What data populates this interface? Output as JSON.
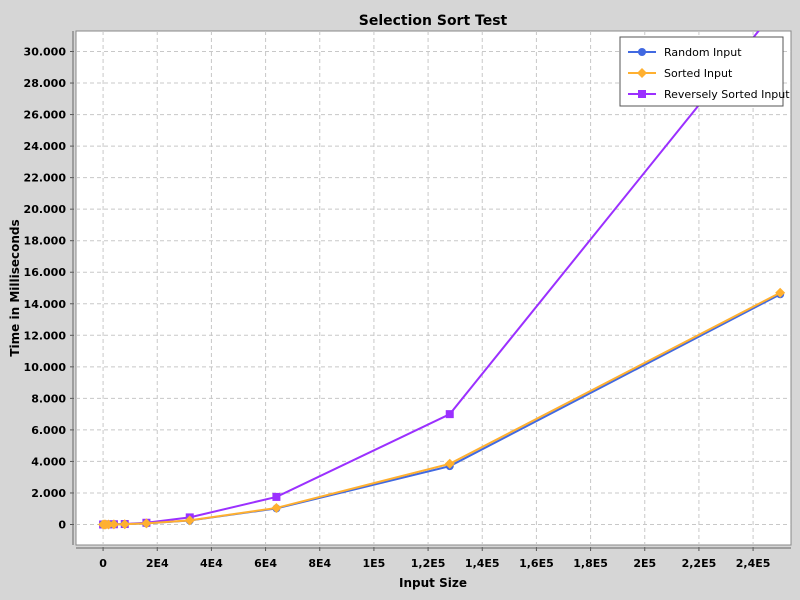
{
  "chart_data": {
    "type": "line",
    "title": "Selection Sort Test",
    "xlabel": "Input Size",
    "ylabel": "Time in Milliseconds",
    "xlim": [
      -10000,
      254000
    ],
    "ylim": [
      -1300,
      31300
    ],
    "x_ticks": [
      {
        "value": 0,
        "label": "0"
      },
      {
        "value": 20000,
        "label": "2E4"
      },
      {
        "value": 40000,
        "label": "4E4"
      },
      {
        "value": 60000,
        "label": "6E4"
      },
      {
        "value": 80000,
        "label": "8E4"
      },
      {
        "value": 100000,
        "label": "1E5"
      },
      {
        "value": 120000,
        "label": "1,2E5"
      },
      {
        "value": 140000,
        "label": "1,4E5"
      },
      {
        "value": 160000,
        "label": "1,6E5"
      },
      {
        "value": 180000,
        "label": "1,8E5"
      },
      {
        "value": 200000,
        "label": "2E5"
      },
      {
        "value": 220000,
        "label": "2,2E5"
      },
      {
        "value": 240000,
        "label": "2,4E5"
      }
    ],
    "y_ticks": [
      {
        "value": 0,
        "label": "0"
      },
      {
        "value": 2000,
        "label": "2.000"
      },
      {
        "value": 4000,
        "label": "4.000"
      },
      {
        "value": 6000,
        "label": "6.000"
      },
      {
        "value": 8000,
        "label": "8.000"
      },
      {
        "value": 10000,
        "label": "10.000"
      },
      {
        "value": 12000,
        "label": "12.000"
      },
      {
        "value": 14000,
        "label": "14.000"
      },
      {
        "value": 16000,
        "label": "16.000"
      },
      {
        "value": 18000,
        "label": "18.000"
      },
      {
        "value": 20000,
        "label": "20.000"
      },
      {
        "value": 22000,
        "label": "22.000"
      },
      {
        "value": 24000,
        "label": "24.000"
      },
      {
        "value": 26000,
        "label": "26.000"
      },
      {
        "value": 28000,
        "label": "28.000"
      },
      {
        "value": 30000,
        "label": "30.000"
      }
    ],
    "grid": true,
    "legend_position": "top-right",
    "series": [
      {
        "name": "Random Input",
        "color": "#4169e1",
        "marker": "circle",
        "points": [
          [
            0,
            0
          ],
          [
            500,
            1
          ],
          [
            1000,
            2
          ],
          [
            2000,
            4
          ],
          [
            4000,
            10
          ],
          [
            8000,
            20
          ],
          [
            16000,
            70
          ],
          [
            32000,
            250
          ],
          [
            64000,
            1020
          ],
          [
            128000,
            3700
          ],
          [
            250000,
            14600
          ]
        ]
      },
      {
        "name": "Sorted Input",
        "color": "#ffb030",
        "marker": "diamond",
        "points": [
          [
            0,
            0
          ],
          [
            500,
            1
          ],
          [
            1000,
            2
          ],
          [
            2000,
            4
          ],
          [
            4000,
            10
          ],
          [
            8000,
            20
          ],
          [
            16000,
            70
          ],
          [
            32000,
            260
          ],
          [
            64000,
            1050
          ],
          [
            128000,
            3850
          ],
          [
            250000,
            14700
          ]
        ]
      },
      {
        "name": "Reversely Sorted Input",
        "color": "#9b30ff",
        "marker": "square",
        "points": [
          [
            0,
            0
          ],
          [
            500,
            2
          ],
          [
            1000,
            4
          ],
          [
            2000,
            8
          ],
          [
            4000,
            16
          ],
          [
            8000,
            30
          ],
          [
            16000,
            110
          ],
          [
            32000,
            450
          ],
          [
            64000,
            1750
          ],
          [
            128000,
            7000
          ],
          [
            250000,
            33000
          ]
        ]
      }
    ]
  }
}
